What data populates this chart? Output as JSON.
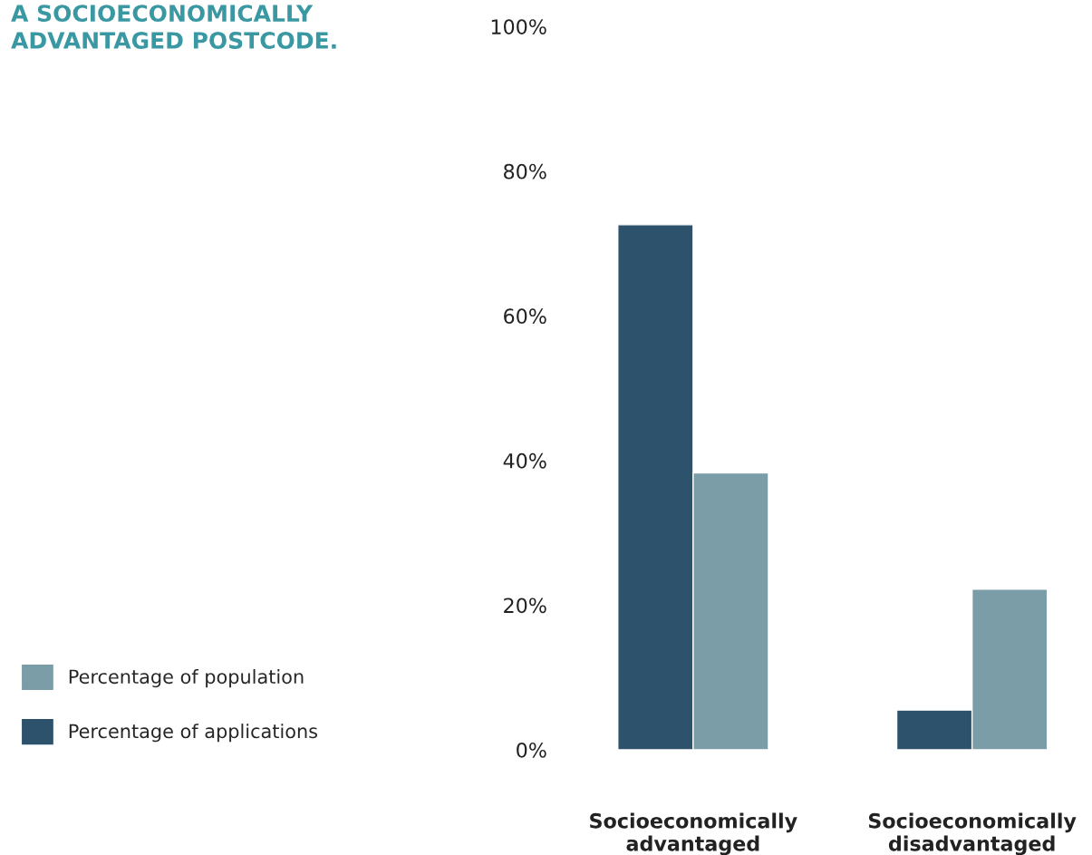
{
  "chart_data": {
    "type": "bar",
    "title": "A SOCIOECONOMICALLY\nADVANTAGED POSTCODE.",
    "categories": [
      "Socioeconomically\nadvantaged",
      "Socioeconomically\ndisadvantaged"
    ],
    "series": [
      {
        "name": "Percentage of applications",
        "color": "#2d526b",
        "values": [
          72.6,
          5.5
        ]
      },
      {
        "name": "Percentage of population",
        "color": "#7a9da7",
        "values": [
          38.3,
          22.2
        ]
      }
    ],
    "ylim": [
      0,
      100
    ],
    "yticks": [
      {
        "value": 0,
        "label": "0%"
      },
      {
        "value": 20,
        "label": "20%"
      },
      {
        "value": 40,
        "label": "40%"
      },
      {
        "value": 60,
        "label": "60%"
      },
      {
        "value": 80,
        "label": "80%"
      },
      {
        "value": 100,
        "label": "100%"
      }
    ],
    "grid": false,
    "legend": "left"
  }
}
